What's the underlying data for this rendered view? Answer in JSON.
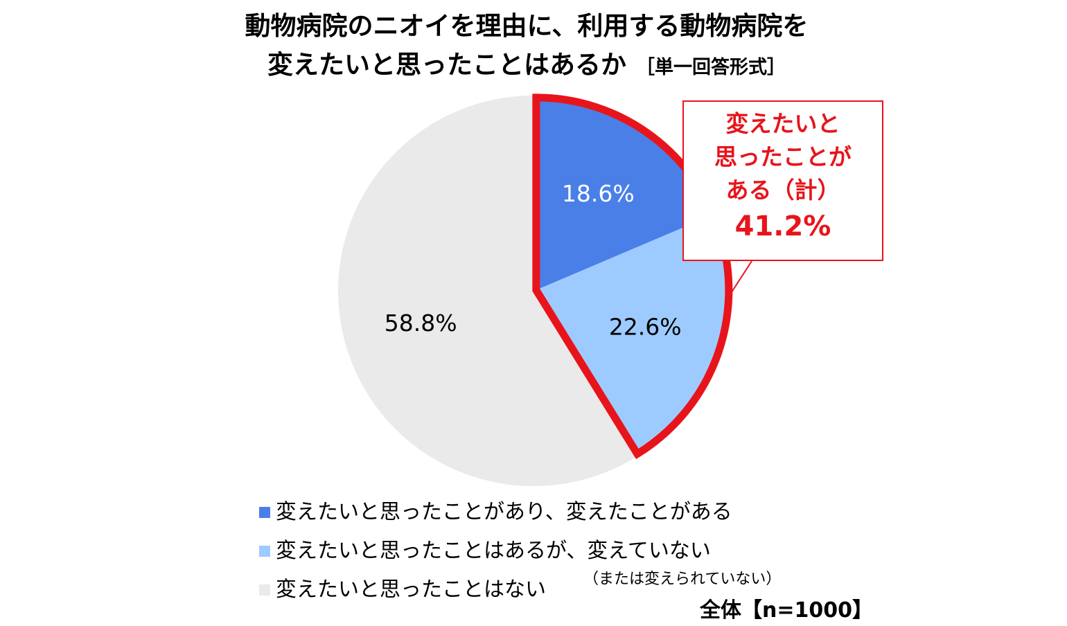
{
  "title": {
    "line1": "動物病院のニオイを理由に、利用する動物病院を",
    "line2": "変えたいと思ったことはあるか",
    "format_note": "［単一回答形式］"
  },
  "chart_data": {
    "type": "pie",
    "start_angle_deg": 0,
    "direction": "clockwise",
    "categories": [
      "変えたいと思ったことがあり、変えたことがある",
      "変えたいと思ったことはあるが、変えていない",
      "変えたいと思ったことはない"
    ],
    "values": [
      18.6,
      22.6,
      58.8
    ],
    "data_labels": [
      "18.6%",
      "22.6%",
      "58.8%"
    ],
    "colors": [
      "#4a7fe8",
      "#9ecbff",
      "#eaeaea"
    ],
    "label_colors": [
      "#ffffff",
      "#000000",
      "#000000"
    ],
    "highlight": {
      "slices": [
        0,
        1
      ],
      "color": "#e8141b",
      "lines": [
        "変えたいと",
        "思ったことが",
        "ある（計）"
      ],
      "value": "41.2%"
    },
    "legend_placement": "bottom",
    "legend_extra_note": "（または変えられていない）",
    "sample": "全体【n=1000】"
  }
}
